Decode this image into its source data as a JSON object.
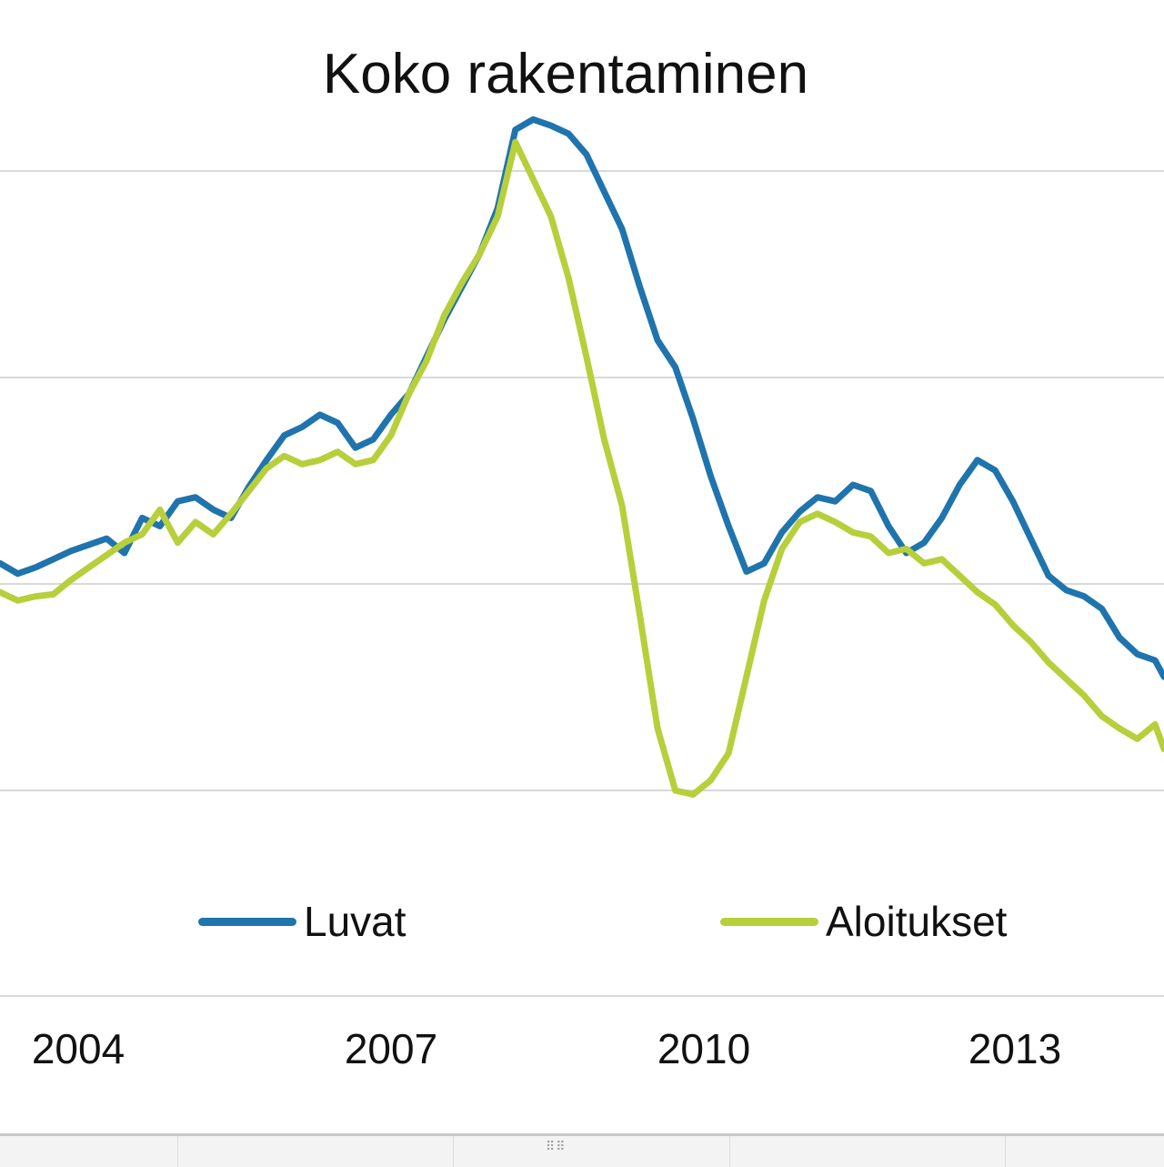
{
  "chart_data": {
    "type": "line",
    "title": "Koko rakentaminen",
    "xlabel": "",
    "ylabel": "",
    "x_tick_labels": [
      "2004",
      "2007",
      "2010",
      "2013"
    ],
    "x_range": [
      2001.6,
      2014.7
    ],
    "y_range": [
      0,
      4
    ],
    "y_gridlines": [
      1,
      2,
      3,
      4
    ],
    "legend": "bottom",
    "grid": true,
    "x": [
      2001.6,
      2001.8,
      2002.0,
      2002.2,
      2002.4,
      2002.6,
      2002.8,
      2003.0,
      2003.2,
      2003.4,
      2003.6,
      2003.8,
      2004.0,
      2004.2,
      2004.4,
      2004.6,
      2004.8,
      2005.0,
      2005.2,
      2005.4,
      2005.6,
      2005.8,
      2006.0,
      2006.2,
      2006.4,
      2006.6,
      2006.8,
      2007.0,
      2007.2,
      2007.4,
      2007.6,
      2007.8,
      2008.0,
      2008.2,
      2008.4,
      2008.6,
      2008.8,
      2009.0,
      2009.2,
      2009.4,
      2009.6,
      2009.8,
      2010.0,
      2010.2,
      2010.4,
      2010.6,
      2010.8,
      2011.0,
      2011.2,
      2011.4,
      2011.6,
      2011.8,
      2012.0,
      2012.2,
      2012.4,
      2012.6,
      2012.8,
      2013.0,
      2013.2,
      2013.4,
      2013.6,
      2013.8,
      2014.0,
      2014.2,
      2014.4,
      2014.6,
      2014.7
    ],
    "series": [
      {
        "name": "Luvat",
        "color": "#1f74ad",
        "values": [
          2.1,
          2.05,
          2.08,
          2.12,
          2.16,
          2.19,
          2.22,
          2.15,
          2.32,
          2.28,
          2.4,
          2.42,
          2.36,
          2.32,
          2.47,
          2.6,
          2.72,
          2.76,
          2.82,
          2.78,
          2.66,
          2.7,
          2.82,
          2.92,
          3.1,
          3.28,
          3.44,
          3.6,
          3.82,
          4.2,
          4.25,
          4.22,
          4.18,
          4.08,
          3.9,
          3.72,
          3.44,
          3.18,
          3.05,
          2.8,
          2.52,
          2.28,
          2.06,
          2.1,
          2.25,
          2.35,
          2.42,
          2.4,
          2.48,
          2.45,
          2.28,
          2.15,
          2.2,
          2.32,
          2.48,
          2.6,
          2.55,
          2.4,
          2.22,
          2.04,
          1.97,
          1.94,
          1.88,
          1.74,
          1.66,
          1.63,
          1.55
        ]
      },
      {
        "name": "Aloitukset",
        "color": "#b7cf3a",
        "values": [
          1.96,
          1.92,
          1.94,
          1.95,
          2.02,
          2.08,
          2.14,
          2.2,
          2.24,
          2.36,
          2.2,
          2.3,
          2.24,
          2.34,
          2.45,
          2.56,
          2.62,
          2.58,
          2.6,
          2.64,
          2.58,
          2.6,
          2.72,
          2.92,
          3.08,
          3.3,
          3.46,
          3.6,
          3.78,
          4.14,
          3.96,
          3.78,
          3.48,
          3.1,
          2.7,
          2.38,
          1.85,
          1.3,
          1.0,
          0.98,
          1.05,
          1.18,
          1.55,
          1.92,
          2.17,
          2.3,
          2.34,
          2.3,
          2.25,
          2.23,
          2.15,
          2.17,
          2.1,
          2.12,
          2.04,
          1.96,
          1.9,
          1.8,
          1.72,
          1.62,
          1.54,
          1.46,
          1.36,
          1.3,
          1.25,
          1.32,
          1.2
        ]
      }
    ]
  }
}
